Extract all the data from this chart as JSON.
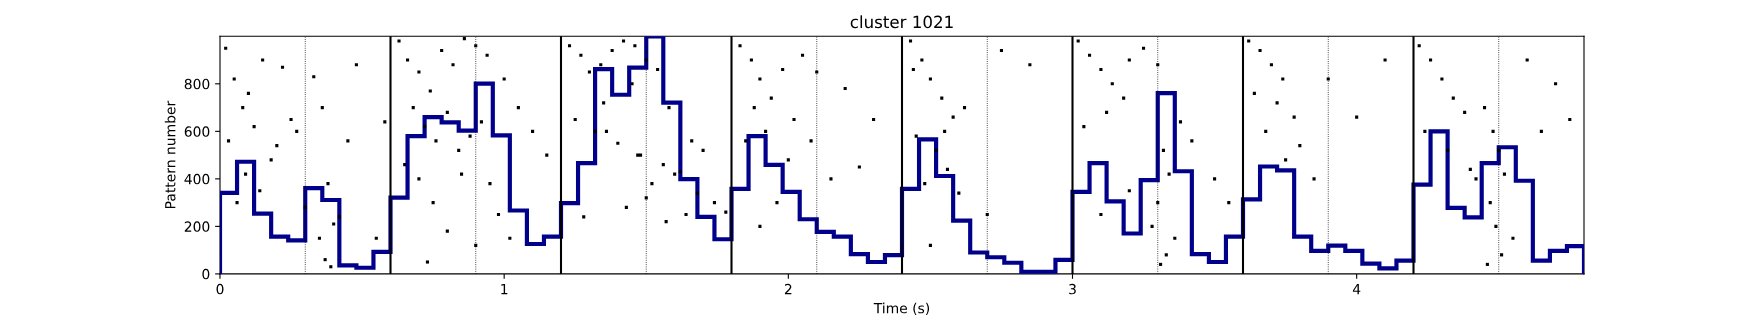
{
  "chart_data": {
    "type": "scatter",
    "title": "cluster 1021",
    "xlabel": "Time (s)",
    "ylabel": "Pattern number",
    "xlim": [
      0,
      4.8
    ],
    "ylim": [
      0,
      1000
    ],
    "xticks": [
      0,
      1,
      2,
      3,
      4
    ],
    "yticks": [
      0,
      200,
      400,
      600,
      800
    ],
    "grid": false,
    "legend": false,
    "series": [
      {
        "color": "#000000",
        "marker": "square",
        "x": [
          0.02,
          0.05,
          0.08,
          0.12,
          0.15,
          0.03,
          0.1,
          0.18,
          0.22,
          0.06,
          0.14,
          0.25,
          0.2,
          0.09,
          0.33,
          0.36,
          0.38,
          0.4,
          0.35,
          0.37,
          0.42,
          0.39,
          0.3,
          0.48,
          0.55,
          0.58,
          0.27,
          0.45,
          0.63,
          0.66,
          0.7,
          0.74,
          0.78,
          0.82,
          0.86,
          0.9,
          0.94,
          0.68,
          0.72,
          0.76,
          0.8,
          0.84,
          0.88,
          0.92,
          0.65,
          0.7,
          0.75,
          0.85,
          0.95,
          1.0,
          1.05,
          1.1,
          1.15,
          0.8,
          0.9,
          0.98,
          0.73,
          1.02,
          1.23,
          1.27,
          1.3,
          1.34,
          1.38,
          1.42,
          1.46,
          1.5,
          1.54,
          1.58,
          1.25,
          1.32,
          1.4,
          1.48,
          1.56,
          1.62,
          1.66,
          1.7,
          1.35,
          1.45,
          1.52,
          1.6,
          1.68,
          1.74,
          1.78,
          1.28,
          1.43,
          1.5,
          1.57,
          1.64,
          1.36,
          1.47,
          1.83,
          1.87,
          1.9,
          1.94,
          1.98,
          2.02,
          1.85,
          1.92,
          2.0,
          2.05,
          1.88,
          1.96,
          2.1,
          2.2,
          2.3,
          2.15,
          2.25,
          1.9,
          2.08,
          2.43,
          2.47,
          2.5,
          2.54,
          2.58,
          2.45,
          2.52,
          2.56,
          2.62,
          2.48,
          2.55,
          2.44,
          2.6,
          2.75,
          2.85,
          2.7,
          2.5,
          3.02,
          3.06,
          3.1,
          3.14,
          3.18,
          3.04,
          3.12,
          3.2,
          3.25,
          3.3,
          3.32,
          3.34,
          3.3,
          3.28,
          3.36,
          3.33,
          3.31,
          3.38,
          3.42,
          3.5,
          3.55,
          3.1,
          3.2,
          3.62,
          3.66,
          3.7,
          3.74,
          3.64,
          3.72,
          3.78,
          3.68,
          3.8,
          3.9,
          4.0,
          4.1,
          3.75,
          3.85,
          4.22,
          4.26,
          4.3,
          4.34,
          4.38,
          4.24,
          4.32,
          4.4,
          4.45,
          4.48,
          4.5,
          4.52,
          4.47,
          4.49,
          4.55,
          4.6,
          4.65,
          4.7,
          4.75,
          4.42,
          4.51,
          4.46
        ],
        "values": [
          950,
          820,
          700,
          620,
          900,
          560,
          760,
          480,
          870,
          300,
          350,
          650,
          540,
          420,
          830,
          700,
          380,
          210,
          150,
          60,
          240,
          30,
          280,
          880,
          150,
          640,
          600,
          560,
          980,
          900,
          850,
          770,
          940,
          880,
          990,
          960,
          920,
          700,
          620,
          560,
          680,
          520,
          580,
          640,
          460,
          400,
          300,
          420,
          380,
          820,
          700,
          600,
          500,
          180,
          120,
          250,
          50,
          150,
          960,
          920,
          850,
          880,
          940,
          980,
          960,
          900,
          860,
          700,
          650,
          600,
          550,
          500,
          460,
          430,
          560,
          520,
          720,
          800,
          380,
          420,
          340,
          300,
          260,
          240,
          280,
          320,
          220,
          250,
          600,
          500,
          960,
          900,
          820,
          740,
          860,
          650,
          560,
          600,
          480,
          920,
          700,
          300,
          850,
          780,
          650,
          400,
          450,
          200,
          560,
          980,
          900,
          820,
          740,
          660,
          580,
          520,
          440,
          700,
          380,
          600,
          860,
          340,
          940,
          880,
          250,
          120,
          980,
          920,
          860,
          800,
          740,
          620,
          680,
          900,
          950,
          880,
          520,
          420,
          300,
          200,
          150,
          80,
          40,
          640,
          560,
          400,
          300,
          250,
          350,
          980,
          940,
          880,
          820,
          760,
          720,
          660,
          600,
          540,
          820,
          660,
          900,
          480,
          400,
          960,
          900,
          820,
          740,
          680,
          600,
          520,
          440,
          700,
          600,
          520,
          420,
          300,
          200,
          150,
          900,
          600,
          800,
          650,
          400,
          80,
          40
        ]
      },
      {
        "type": "histogram",
        "color": "#00008b",
        "bins": [
          0,
          0.06,
          0.12,
          0.18,
          0.24,
          0.3,
          0.36,
          0.42,
          0.48,
          0.54,
          0.6,
          0.66,
          0.72,
          0.78,
          0.84,
          0.9,
          0.96,
          1.02,
          1.08,
          1.14,
          1.2,
          1.26,
          1.32,
          1.38,
          1.44,
          1.5,
          1.56,
          1.62,
          1.68,
          1.74,
          1.8,
          1.86,
          1.92,
          1.98,
          2.04,
          2.1,
          2.16,
          2.22,
          2.28,
          2.34,
          2.4,
          2.46,
          2.52,
          2.58,
          2.64,
          2.7,
          2.76,
          2.82,
          2.88,
          2.94,
          3.0,
          3.06,
          3.12,
          3.18,
          3.24,
          3.3,
          3.36,
          3.42,
          3.48,
          3.54,
          3.6,
          3.66,
          3.72,
          3.78,
          3.84,
          3.9,
          3.96,
          4.02,
          4.08,
          4.14,
          4.2,
          4.26,
          4.32,
          4.38,
          4.44,
          4.5,
          4.56,
          4.62,
          4.68,
          4.74,
          4.8
        ],
        "values": [
          341,
          472,
          254,
          157,
          141,
          361,
          311,
          36,
          26,
          93,
          321,
          580,
          660,
          638,
          603,
          801,
          583,
          267,
          126,
          157,
          298,
          466,
          862,
          754,
          868,
          1000,
          721,
          399,
          240,
          146,
          358,
          580,
          459,
          345,
          230,
          177,
          157,
          83,
          50,
          79,
          358,
          566,
          412,
          224,
          90,
          70,
          47,
          9,
          9,
          59,
          345,
          466,
          305,
          170,
          395,
          761,
          432,
          83,
          50,
          157,
          314,
          452,
          436,
          157,
          97,
          119,
          97,
          43,
          23,
          56,
          376,
          600,
          278,
          238,
          466,
          533,
          392,
          56,
          97,
          117
        ]
      }
    ],
    "ref_lines": [
      {
        "axis": "x",
        "value": 0.6,
        "color": "#000000",
        "line_style": "solid"
      },
      {
        "axis": "x",
        "value": 1.2,
        "color": "#000000",
        "line_style": "solid"
      },
      {
        "axis": "x",
        "value": 1.8,
        "color": "#000000",
        "line_style": "solid"
      },
      {
        "axis": "x",
        "value": 2.4,
        "color": "#000000",
        "line_style": "solid"
      },
      {
        "axis": "x",
        "value": 3.0,
        "color": "#000000",
        "line_style": "solid"
      },
      {
        "axis": "x",
        "value": 3.6,
        "color": "#000000",
        "line_style": "solid"
      },
      {
        "axis": "x",
        "value": 4.2,
        "color": "#000000",
        "line_style": "solid"
      },
      {
        "axis": "x",
        "value": 0.3,
        "color": "#000000",
        "line_style": "dotted"
      },
      {
        "axis": "x",
        "value": 0.9,
        "color": "#000000",
        "line_style": "dotted"
      },
      {
        "axis": "x",
        "value": 1.5,
        "color": "#000000",
        "line_style": "dotted"
      },
      {
        "axis": "x",
        "value": 2.1,
        "color": "#000000",
        "line_style": "dotted"
      },
      {
        "axis": "x",
        "value": 2.7,
        "color": "#000000",
        "line_style": "dotted"
      },
      {
        "axis": "x",
        "value": 3.3,
        "color": "#000000",
        "line_style": "dotted"
      },
      {
        "axis": "x",
        "value": 3.9,
        "color": "#000000",
        "line_style": "dotted"
      },
      {
        "axis": "x",
        "value": 4.5,
        "color": "#000000",
        "line_style": "dotted"
      }
    ]
  }
}
